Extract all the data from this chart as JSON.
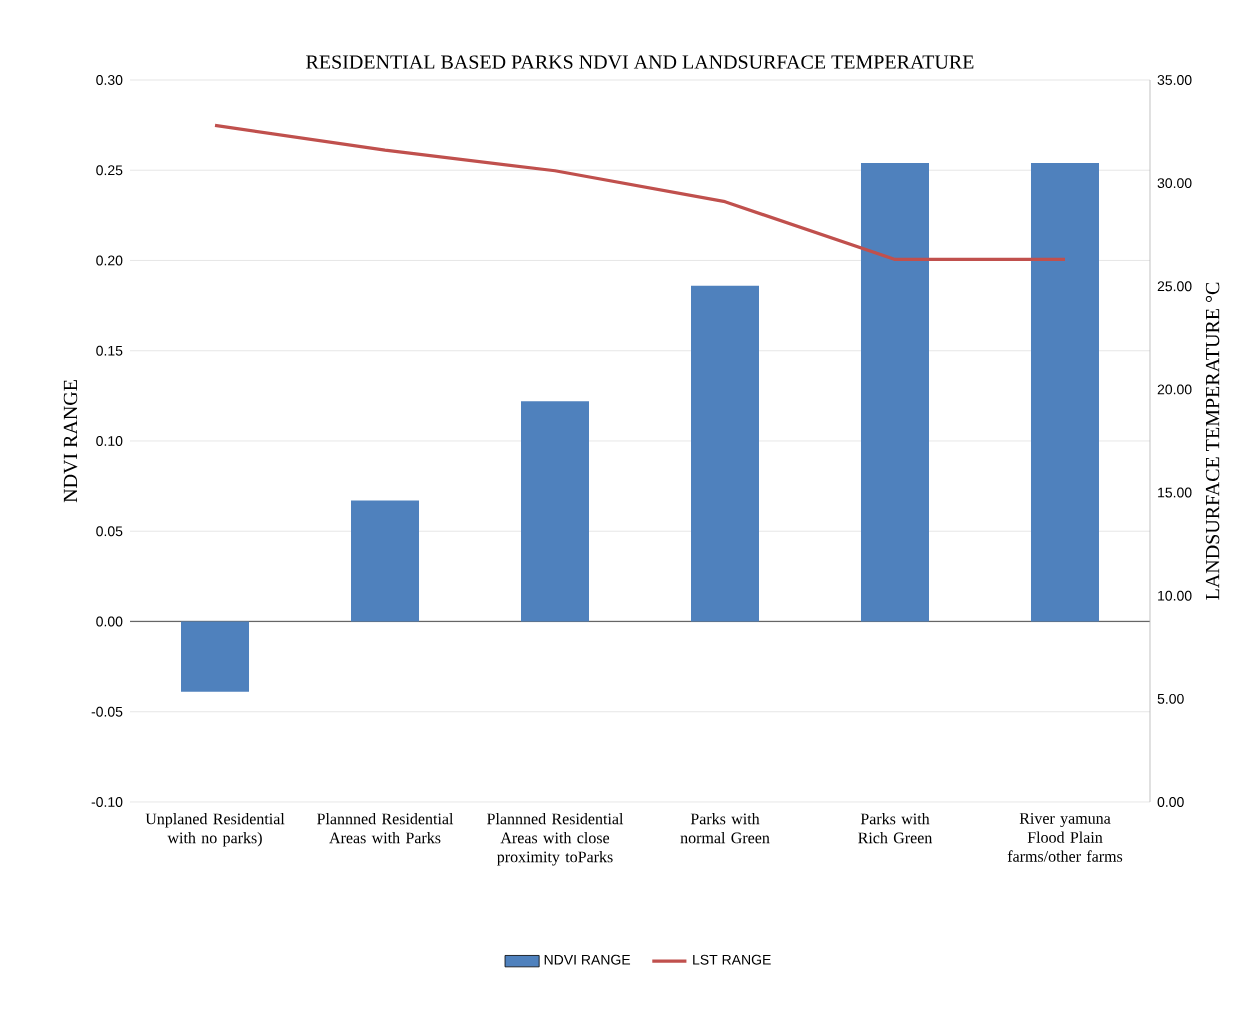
{
  "chart_data": {
    "type": "bar",
    "title": "RESIDENTIAL BASED PARKS NDVI AND LANDSURFACE TEMPERATURE",
    "ylabel": "NDVI RANGE",
    "y2label": "LANDSURFACE TEMPERATURE °C",
    "categories": [
      "Unplaned Residential with no  parks)",
      "Plannned Residential Areas with Parks",
      "Plannned Residential Areas with close proximity toParks",
      "Parks with normal Green",
      "Parks with Rich Green",
      "River yamuna Flood Plain farms/other farms"
    ],
    "series": [
      {
        "name": "NDVI RANGE",
        "color": "#4f81bd",
        "values": [
          -0.039,
          0.067,
          0.122,
          0.186,
          0.254,
          0.254
        ]
      },
      {
        "name": "LST RANGE",
        "type": "line",
        "axis": "y2",
        "color": "#c0504d",
        "values": [
          32.8,
          31.6,
          30.6,
          29.1,
          26.3,
          26.3
        ]
      }
    ],
    "ylim": [
      -0.1,
      0.3
    ],
    "yticks": [
      {
        "value": -0.1,
        "label": "-0.10"
      },
      {
        "value": -0.05,
        "label": "-0.05"
      },
      {
        "value": 0,
        "label": "0.00"
      },
      {
        "value": 0.05,
        "label": "0.05"
      },
      {
        "value": 0.1,
        "label": "0.10"
      },
      {
        "value": 0.15,
        "label": "0.15"
      },
      {
        "value": 0.2,
        "label": "0.20"
      },
      {
        "value": 0.25,
        "label": "0.25"
      },
      {
        "value": 0.3,
        "label": "0.30"
      }
    ],
    "y2lim": [
      0,
      35
    ],
    "y2ticks": [
      {
        "value": 0,
        "label": "0.00"
      },
      {
        "value": 5,
        "label": "5.00"
      },
      {
        "value": 10,
        "label": "10.00"
      },
      {
        "value": 15,
        "label": "15.00"
      },
      {
        "value": 20,
        "label": "20.00"
      },
      {
        "value": 25,
        "label": "25.00"
      },
      {
        "value": 30,
        "label": "30.00"
      },
      {
        "value": 35,
        "label": "35.00"
      }
    ],
    "grid": "y",
    "legend": "bottom",
    "marker": "none"
  }
}
